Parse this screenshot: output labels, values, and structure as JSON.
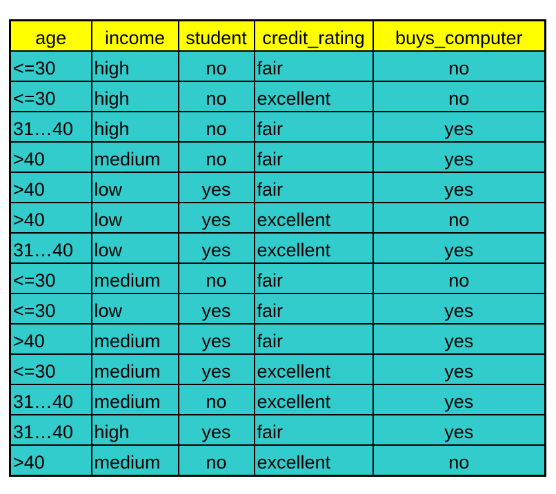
{
  "colors": {
    "header_bg": "#FFFF00",
    "cell_bg": "#33CCCC",
    "border": "#000000",
    "text": "#000000"
  },
  "chart_data": {
    "type": "table",
    "columns": [
      "age",
      "income",
      "student",
      "credit_rating",
      "buys_computer"
    ],
    "rows": [
      [
        "<=30",
        "high",
        "no",
        "fair",
        "no"
      ],
      [
        "<=30",
        "high",
        "no",
        "excellent",
        "no"
      ],
      [
        "31…40",
        "high",
        "no",
        "fair",
        "yes"
      ],
      [
        ">40",
        "medium",
        "no",
        "fair",
        "yes"
      ],
      [
        ">40",
        "low",
        "yes",
        "fair",
        "yes"
      ],
      [
        ">40",
        "low",
        "yes",
        "excellent",
        "no"
      ],
      [
        "31…40",
        "low",
        "yes",
        "excellent",
        "yes"
      ],
      [
        "<=30",
        "medium",
        "no",
        "fair",
        "no"
      ],
      [
        "<=30",
        "low",
        "yes",
        "fair",
        "yes"
      ],
      [
        ">40",
        "medium",
        "yes",
        "fair",
        "yes"
      ],
      [
        "<=30",
        "medium",
        "yes",
        "excellent",
        "yes"
      ],
      [
        "31…40",
        "medium",
        "no",
        "excellent",
        "yes"
      ],
      [
        "31…40",
        "high",
        "yes",
        "fair",
        "yes"
      ],
      [
        ">40",
        "medium",
        "no",
        "excellent",
        "no"
      ]
    ]
  }
}
